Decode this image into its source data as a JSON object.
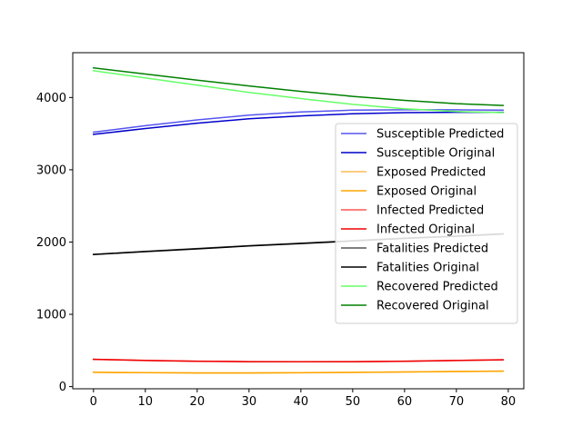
{
  "chart_data": {
    "type": "line",
    "title": "",
    "xlabel": "",
    "ylabel": "",
    "xlim": [
      -4,
      83
    ],
    "ylim": [
      -30,
      4620
    ],
    "xticks": [
      0,
      10,
      20,
      30,
      40,
      50,
      60,
      70,
      80
    ],
    "yticks": [
      0,
      1000,
      2000,
      3000,
      4000
    ],
    "grid": false,
    "legend_position": "center-right",
    "series": [
      {
        "name": "Susceptible Predicted",
        "color": "#5555ee",
        "x": [
          0,
          10,
          20,
          30,
          40,
          50,
          60,
          70,
          79
        ],
        "y": [
          3520,
          3610,
          3690,
          3755,
          3800,
          3825,
          3830,
          3830,
          3825
        ]
      },
      {
        "name": "Susceptible Original",
        "color": "#0000cc",
        "x": [
          0,
          10,
          20,
          30,
          40,
          50,
          60,
          70,
          79
        ],
        "y": [
          3490,
          3570,
          3645,
          3705,
          3745,
          3775,
          3790,
          3795,
          3795
        ]
      },
      {
        "name": "Exposed Predicted",
        "color": "#ffbb55",
        "x": [
          0,
          10,
          20,
          30,
          40,
          50,
          60,
          70,
          79
        ],
        "y": [
          200,
          193,
          190,
          190,
          192,
          197,
          203,
          210,
          215
        ]
      },
      {
        "name": "Exposed Original",
        "color": "#ffa500",
        "x": [
          0,
          10,
          20,
          30,
          40,
          50,
          60,
          70,
          79
        ],
        "y": [
          198,
          192,
          189,
          189,
          191,
          196,
          202,
          209,
          214
        ]
      },
      {
        "name": "Infected Predicted",
        "color": "#ff5555",
        "x": [
          0,
          10,
          20,
          30,
          40,
          50,
          60,
          70,
          79
        ],
        "y": [
          378,
          362,
          352,
          346,
          344,
          346,
          352,
          362,
          372
        ]
      },
      {
        "name": "Infected Original",
        "color": "#ee0000",
        "x": [
          0,
          10,
          20,
          30,
          40,
          50,
          60,
          70,
          79
        ],
        "y": [
          377,
          361,
          351,
          345,
          343,
          345,
          351,
          361,
          371
        ]
      },
      {
        "name": "Fatalities Predicted",
        "color": "#555555",
        "x": [
          0,
          10,
          20,
          30,
          40,
          50,
          60,
          70,
          79
        ],
        "y": [
          1830,
          1870,
          1910,
          1950,
          1985,
          2020,
          2055,
          2085,
          2115
        ]
      },
      {
        "name": "Fatalities Original",
        "color": "#000000",
        "x": [
          0,
          10,
          20,
          30,
          40,
          50,
          60,
          70,
          79
        ],
        "y": [
          1828,
          1868,
          1905,
          1945,
          1980,
          2015,
          2050,
          2080,
          2110
        ]
      },
      {
        "name": "Recovered Predicted",
        "color": "#66ff66",
        "x": [
          0,
          10,
          20,
          30,
          40,
          50,
          60,
          70,
          79
        ],
        "y": [
          4370,
          4270,
          4170,
          4070,
          3985,
          3905,
          3845,
          3805,
          3790
        ]
      },
      {
        "name": "Recovered Original",
        "color": "#008000",
        "x": [
          0,
          10,
          20,
          30,
          40,
          50,
          60,
          70,
          79
        ],
        "y": [
          4410,
          4325,
          4240,
          4160,
          4085,
          4015,
          3960,
          3915,
          3890
        ]
      }
    ]
  }
}
